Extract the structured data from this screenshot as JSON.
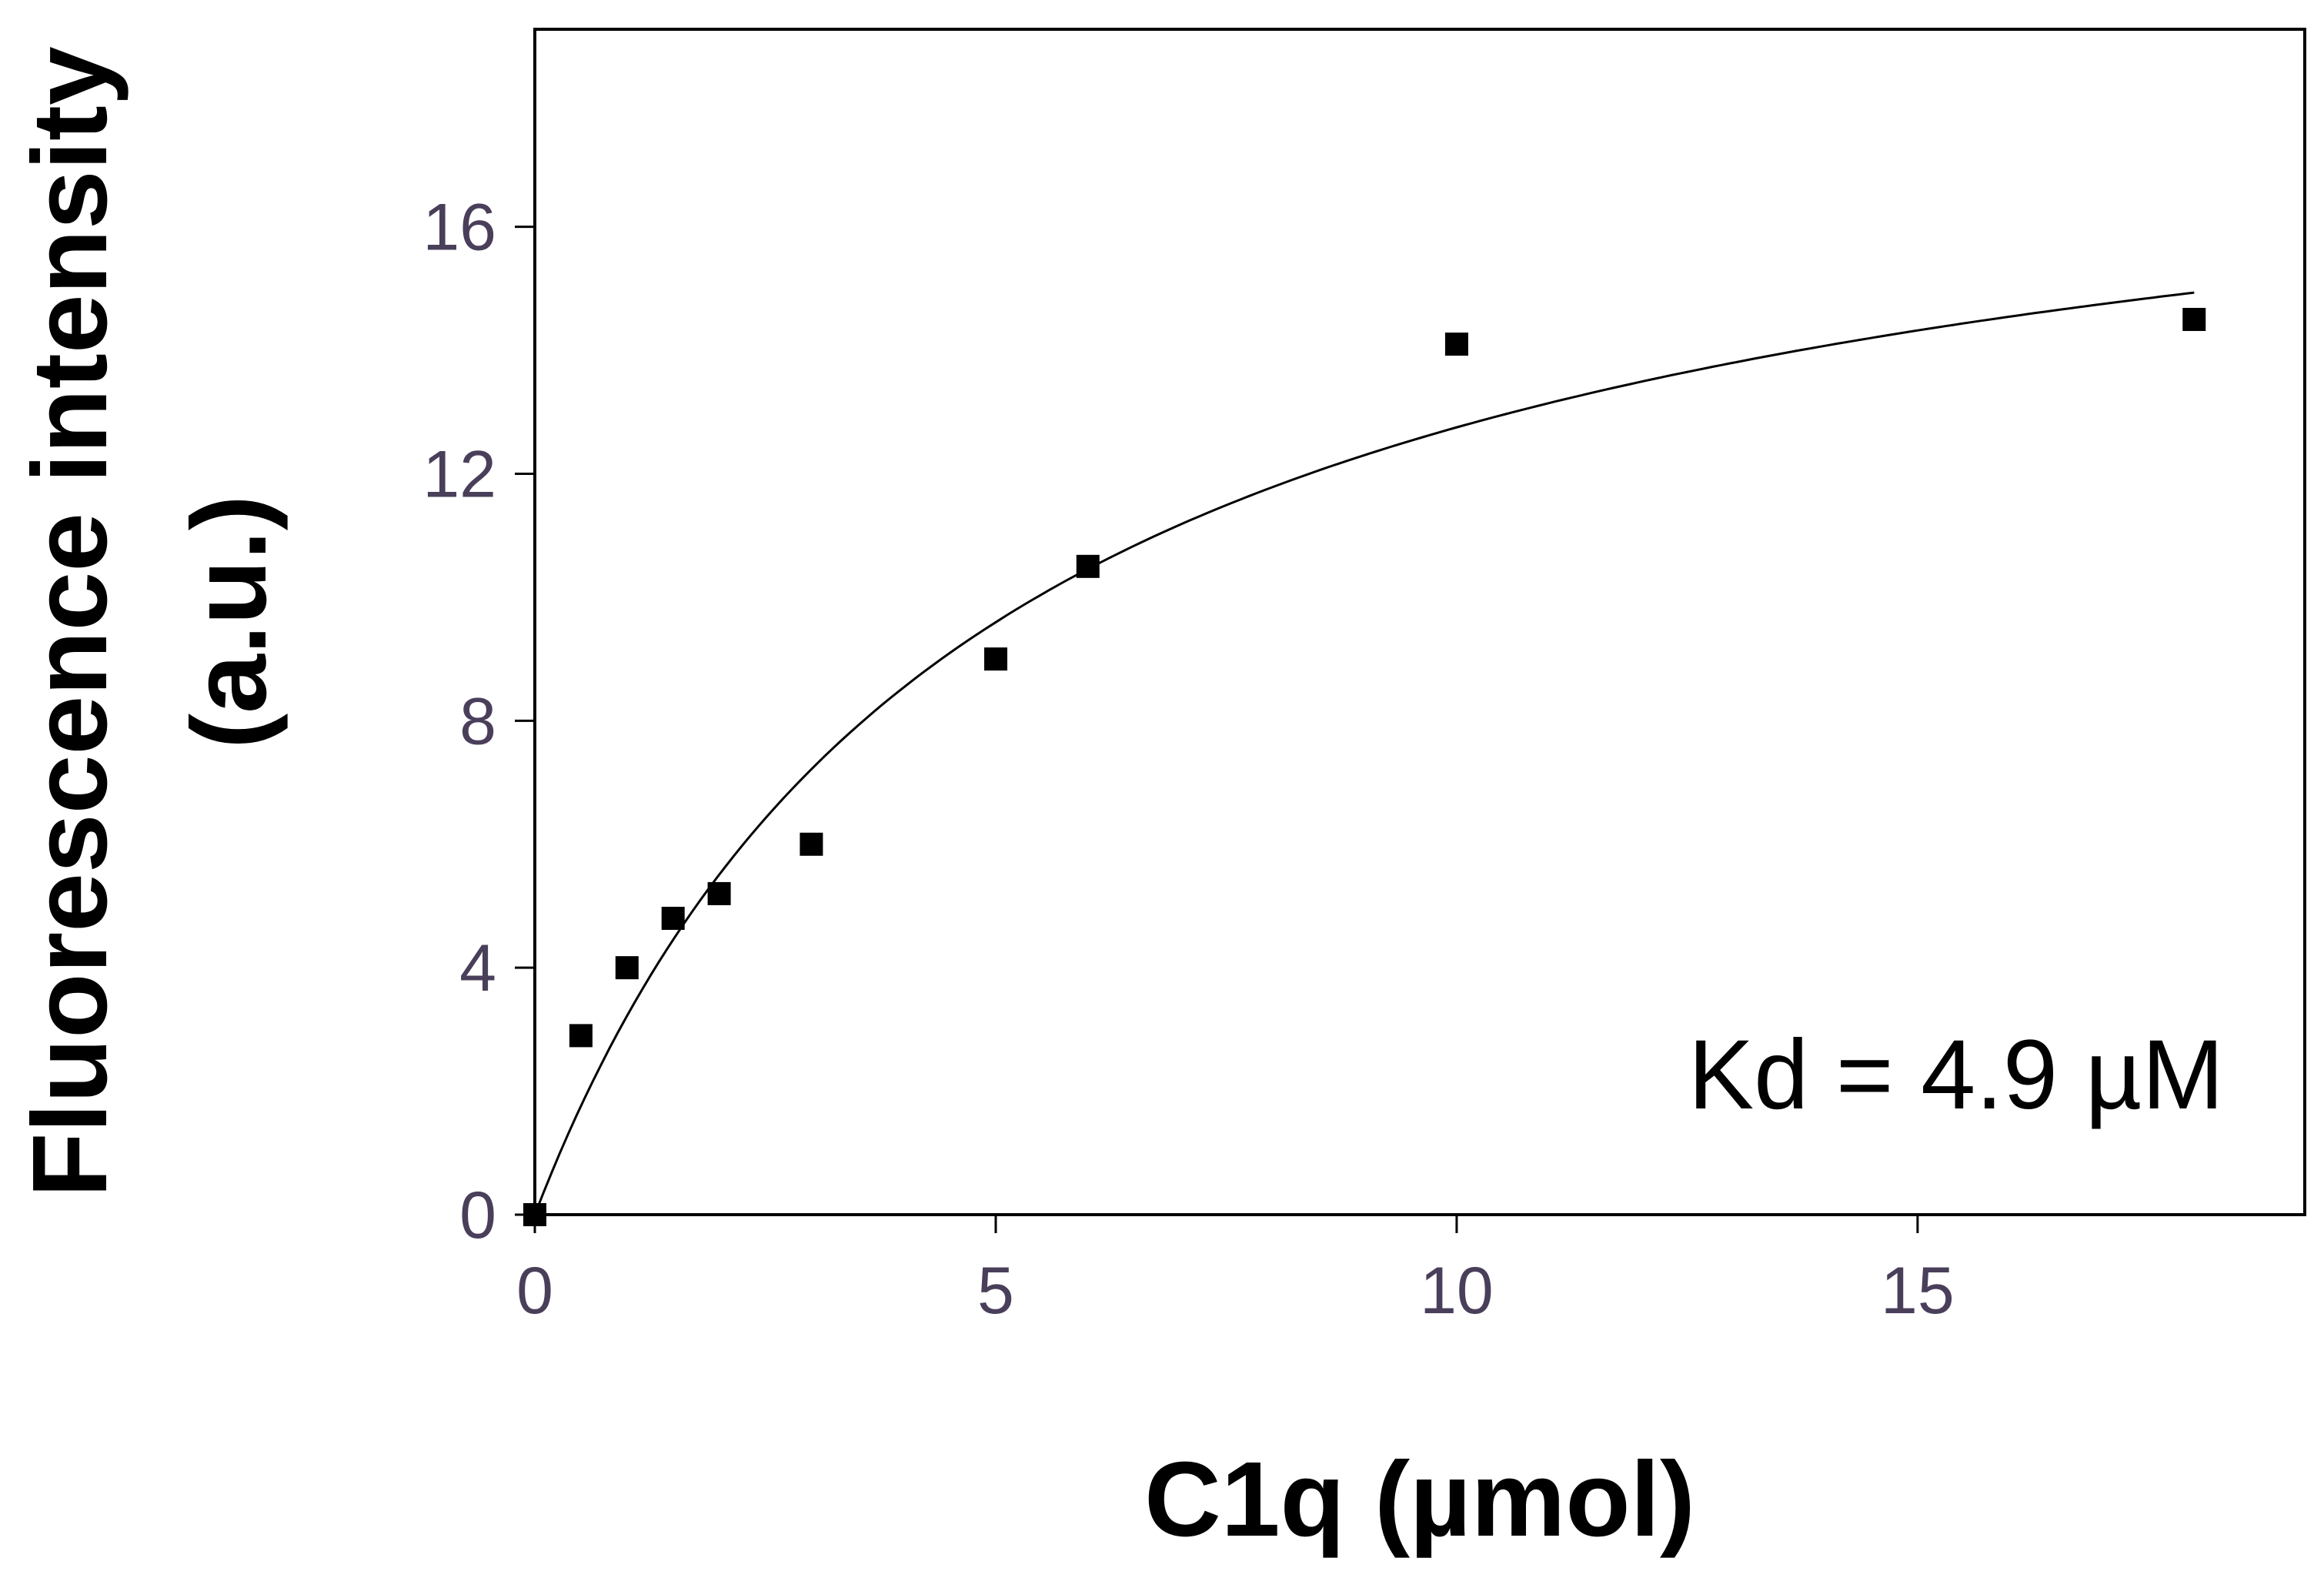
{
  "chart_data": {
    "type": "scatter",
    "xlabel": "C1q (µmol)",
    "ylabel": "Fluorescence intensity",
    "ylabel_unit": "(a.u.)",
    "annotation": "Kd = 4.9 µM",
    "xlim": [
      0,
      19.2
    ],
    "ylim": [
      0,
      19.2
    ],
    "x_ticks": [
      0,
      5,
      10,
      15
    ],
    "x_tick_labels": [
      "0",
      "5",
      "10",
      "15"
    ],
    "y_ticks": [
      0,
      4,
      8,
      12,
      16
    ],
    "y_tick_labels": [
      "0",
      "4",
      "8",
      "12",
      "16"
    ],
    "grid": false,
    "series": [
      {
        "kind": "points",
        "marker": "square",
        "color": "#000000",
        "x": [
          0,
          0.5,
          1,
          1.5,
          2,
          3,
          5,
          6,
          10,
          18
        ],
        "y": [
          0,
          2.9,
          4.0,
          4.8,
          5.2,
          6.0,
          9.0,
          10.5,
          14.1,
          14.5
        ]
      },
      {
        "kind": "fit",
        "model": "one-site binding, Kd = 4.9",
        "color": "#000000",
        "bmax": 19.0,
        "kd": 4.9,
        "x_range": [
          0,
          18
        ]
      }
    ]
  }
}
